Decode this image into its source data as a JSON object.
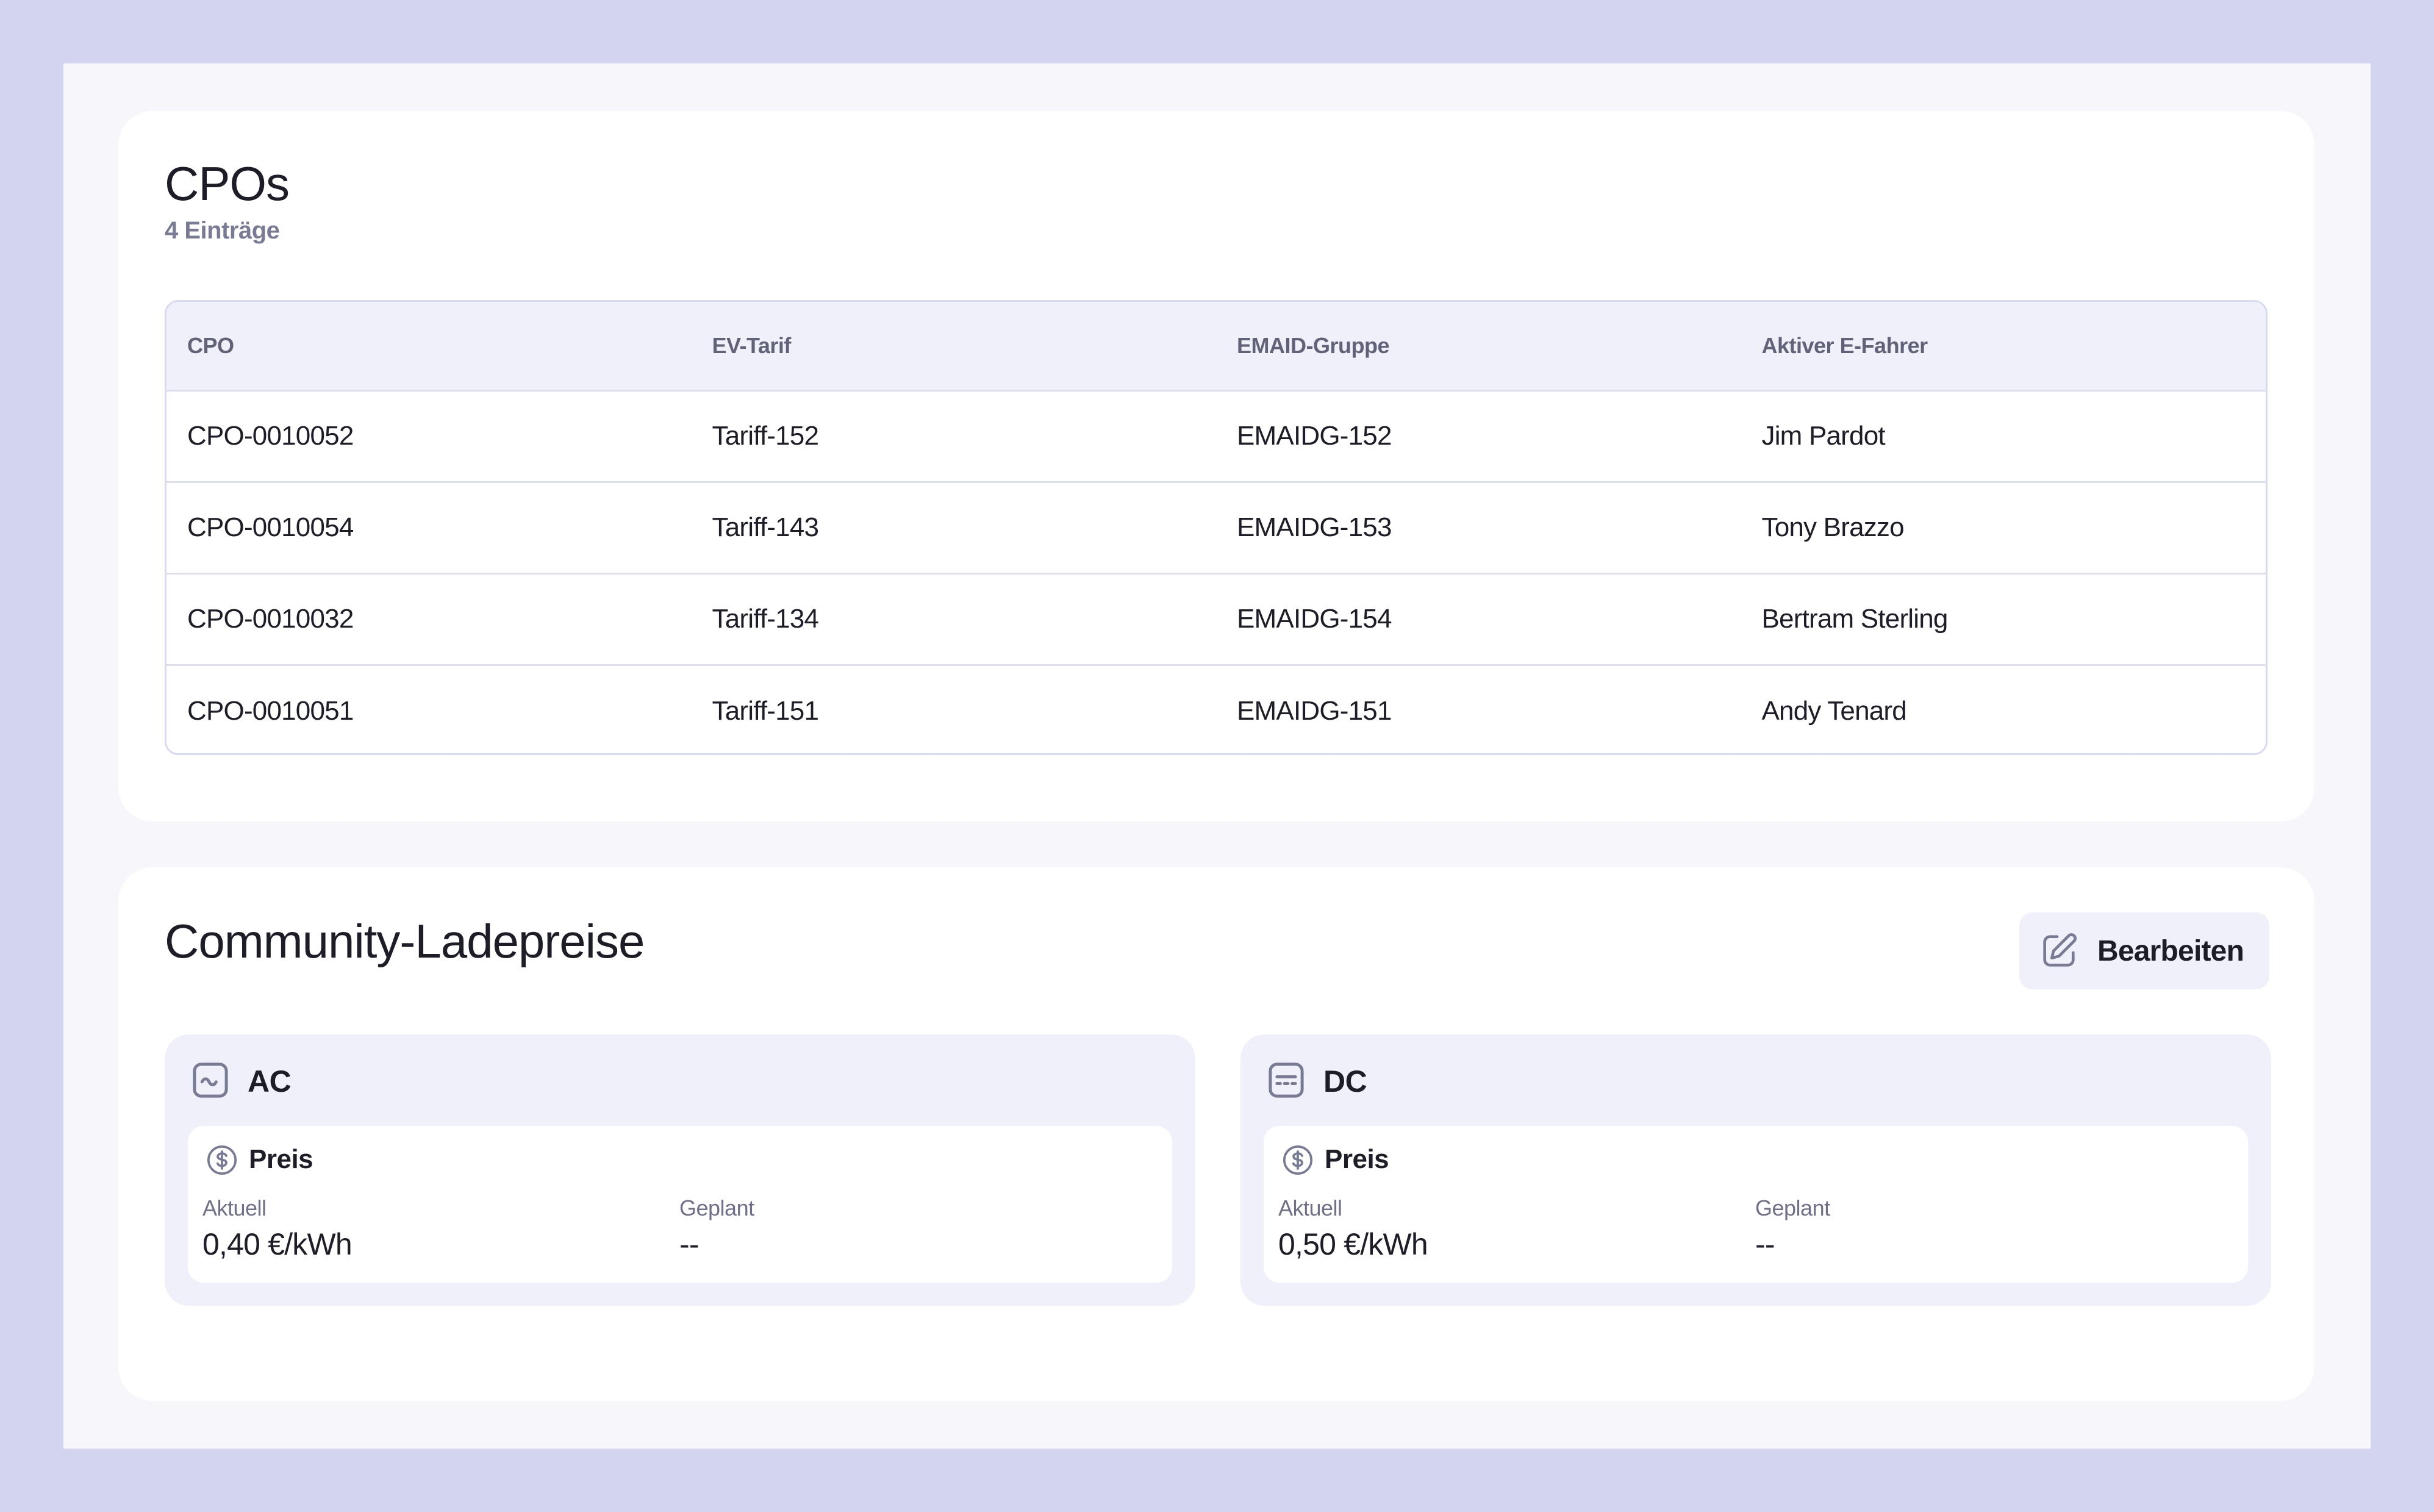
{
  "cpos_section": {
    "title": "CPOs",
    "count": "4 Einträge",
    "columns": [
      "CPO",
      "EV-Tarif",
      "EMAID-Gruppe",
      "Aktiver E-Fahrer"
    ],
    "rows": [
      [
        "CPO-0010052",
        "Tariff-152",
        "EMAIDG-152",
        "Jim Pardot"
      ],
      [
        "CPO-0010054",
        "Tariff-143",
        "EMAIDG-153",
        "Tony Brazzo"
      ],
      [
        "CPO-0010032",
        "Tariff-134",
        "EMAIDG-154",
        "Bertram Sterling"
      ],
      [
        "CPO-0010051",
        "Tariff-151",
        "EMAIDG-151",
        "Andy Tenard"
      ]
    ]
  },
  "prices_section": {
    "title": "Community-Ladepreise",
    "edit_label": "Bearbeiten",
    "ac": {
      "label": "AC",
      "price_label": "Preis",
      "current_label": "Aktuell",
      "current_value": "0,40 €/kWh",
      "planned_label": "Geplant",
      "planned_value": "--"
    },
    "dc": {
      "label": "DC",
      "price_label": "Preis",
      "current_label": "Aktuell",
      "current_value": "0,50 €/kWh",
      "planned_label": "Geplant",
      "planned_value": "--"
    }
  },
  "icons": {
    "ac": "ac-wave-icon",
    "dc": "dc-icon",
    "price": "dollar-circle-icon",
    "edit": "edit-pencil-icon"
  },
  "colors": {
    "frame": "#d3d5f0",
    "accent_bg": "#eff0f9",
    "text": "#1d1d27",
    "muted": "#797a93"
  }
}
